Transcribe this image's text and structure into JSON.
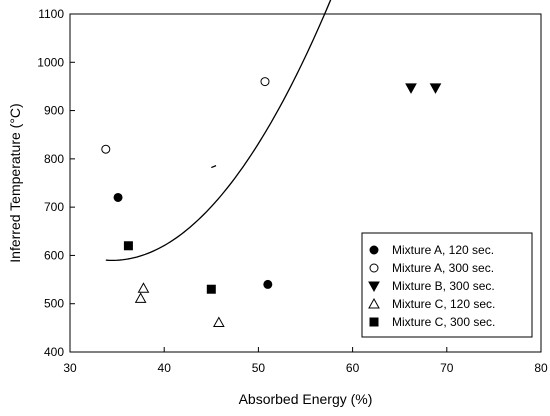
{
  "chart_data": {
    "type": "scatter",
    "title": "",
    "xlabel": "Absorbed Energy (%)",
    "ylabel": "Inferred Temperature (°C)",
    "xlim": [
      30,
      80
    ],
    "ylim": [
      400,
      1100
    ],
    "xticks": [
      30,
      40,
      50,
      60,
      70,
      80
    ],
    "yticks": [
      400,
      500,
      600,
      700,
      800,
      900,
      1000,
      1100
    ],
    "xtick_labels": [
      "30",
      "40",
      "50",
      "60",
      "70",
      "80"
    ],
    "ytick_labels": [
      "400",
      "500",
      "600",
      "700",
      "800",
      "900",
      "1000",
      "1100"
    ],
    "grid": false,
    "legend_position": "bottom-right",
    "series": [
      {
        "name": "Mixture A, 120 sec.",
        "marker": "filled-circle",
        "color": "#000000",
        "points": [
          {
            "x": 35.1,
            "y": 720
          },
          {
            "x": 51.0,
            "y": 540
          }
        ]
      },
      {
        "name": "Mixture A, 300 sec.",
        "marker": "open-circle",
        "color": "#000000",
        "points": [
          {
            "x": 33.8,
            "y": 820
          },
          {
            "x": 50.7,
            "y": 960
          }
        ]
      },
      {
        "name": "Mixture B, 300 sec.",
        "marker": "filled-triangle-down",
        "color": "#000000",
        "points": [
          {
            "x": 66.2,
            "y": 947
          },
          {
            "x": 68.8,
            "y": 947
          }
        ]
      },
      {
        "name": "Mixture C, 120 sec.",
        "marker": "open-triangle-up",
        "color": "#000000",
        "points": [
          {
            "x": 37.8,
            "y": 532
          },
          {
            "x": 37.5,
            "y": 511
          },
          {
            "x": 45.8,
            "y": 461
          }
        ]
      },
      {
        "name": "Mixture C, 300 sec.",
        "marker": "filled-square",
        "color": "#000000",
        "points": [
          {
            "x": 36.2,
            "y": 620
          },
          {
            "x": 45.0,
            "y": 530
          }
        ]
      }
    ],
    "fit_curve": {
      "type": "quadratic",
      "coefficients": [
        1.00156,
        -69.03,
        1779.2
      ],
      "x_range": [
        33.8,
        69.5
      ],
      "color": "#000000"
    },
    "extra_marks": [
      {
        "type": "short-line",
        "x1": 45.0,
        "y1": 782,
        "x2": 45.5,
        "y2": 786
      }
    ]
  }
}
